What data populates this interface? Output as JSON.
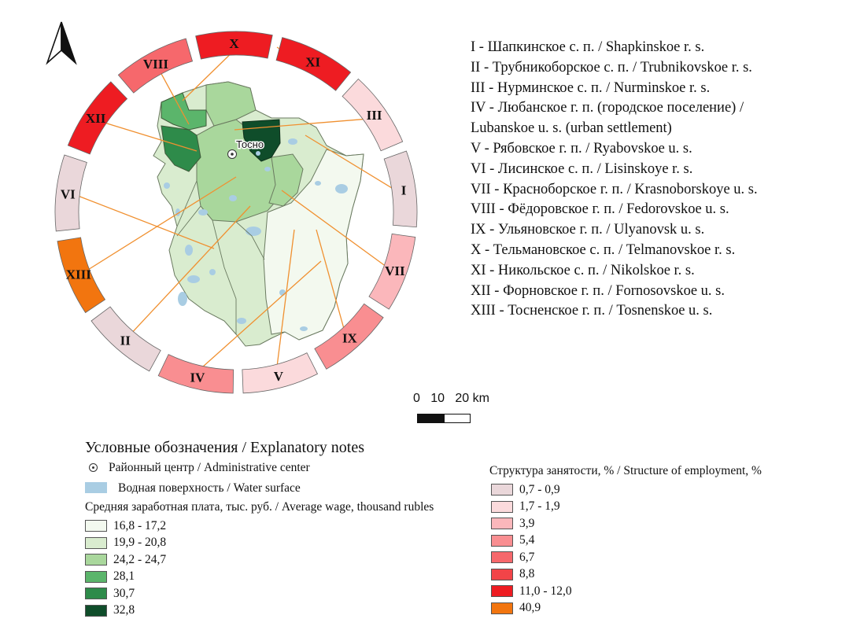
{
  "map": {
    "center_label": "Тосно",
    "north_arrow": "north-arrow-icon",
    "colors": {
      "water": "#a9cde3",
      "leader_line": "#f09030",
      "wage": [
        "#f3f9ef",
        "#d9eccf",
        "#a9d79c",
        "#5bb56b",
        "#2e8b4a",
        "#0f4d2a"
      ],
      "employment": [
        "#ead7da",
        "#fbdadc",
        "#fbb7bb",
        "#f98e91",
        "#f6686c",
        "#f24448",
        "#ee1c22",
        "#f2750f"
      ]
    },
    "ring_segments": [
      {
        "label": "X",
        "color": "#ee1c22"
      },
      {
        "label": "XI",
        "color": "#ee1c22"
      },
      {
        "label": "III",
        "color": "#fbdadc"
      },
      {
        "label": "I",
        "color": "#ead7da"
      },
      {
        "label": "VII",
        "color": "#fbb7bb"
      },
      {
        "label": "IX",
        "color": "#f98e91"
      },
      {
        "label": "V",
        "color": "#fbdadc"
      },
      {
        "label": "IV",
        "color": "#f98e91"
      },
      {
        "label": "II",
        "color": "#ead7da"
      },
      {
        "label": "XIII",
        "color": "#f2750f"
      },
      {
        "label": "VI",
        "color": "#ead7da"
      },
      {
        "label": "XII",
        "color": "#ee1c22"
      },
      {
        "label": "VIII",
        "color": "#f6686c"
      }
    ]
  },
  "settlements": [
    "I - Шапкинское с. п. / Shapkinskoe r. s.",
    "II - Трубникоборское с. п. / Trubnikovskoe r. s.",
    "III - Нурминское с. п. / Nurminskoe r. s.",
    "IV - Любанское г. п. (городское поселение) /",
    "Lubanskoe u. s. (urban settlement)",
    "V - Рябовское г. п. / Ryabovskoe u. s.",
    "VI - Лисинское с. п. / Lisinskoye r. s.",
    "VII - Красноборское г. п. / Krasnoborskoye u. s.",
    "VIII - Фёдоровское г. п. / Fedorovskoe u. s.",
    "IX - Ульяновское г. п. / Ulyanovsk u. s.",
    "X - Тельмановское с. п. / Telmanovskoe r. s.",
    "XI - Никольское с. п. / Nikolskoe r. s.",
    "XII - Форновское г. п. / Fornosovskoe u. s.",
    "XIII - Тосненское г. п. / Tosnenskoe u. s."
  ],
  "scale": {
    "label": "0   10   20 km"
  },
  "notes": {
    "title": "Условные обозначения / Explanatory notes",
    "admin_center": "Районный центр / Administrative center",
    "water_surface": "Водная поверхность / Water surface",
    "wage_title": "Средняя заработная плата, тыс. руб. / Average wage, thousand rubles",
    "wage_classes": [
      {
        "label": "16,8 - 17,2",
        "color": "#f3f9ef"
      },
      {
        "label": "19,9 - 20,8",
        "color": "#d9eccf"
      },
      {
        "label": "24,2 - 24,7",
        "color": "#a9d79c"
      },
      {
        "label": "28,1",
        "color": "#5bb56b"
      },
      {
        "label": "30,7",
        "color": "#2e8b4a"
      },
      {
        "label": "32,8",
        "color": "#0f4d2a"
      }
    ],
    "employment_title": "Структура занятости, % / Structure of employment, %",
    "employment_classes": [
      {
        "label": "0,7 - 0,9",
        "color": "#ead7da"
      },
      {
        "label": "1,7 - 1,9",
        "color": "#fbdadc"
      },
      {
        "label": "3,9",
        "color": "#fbb7bb"
      },
      {
        "label": "5,4",
        "color": "#f98e91"
      },
      {
        "label": "6,7",
        "color": "#f6686c"
      },
      {
        "label": "8,8",
        "color": "#f24448"
      },
      {
        "label": "11,0 - 12,0",
        "color": "#ee1c22"
      },
      {
        "label": "40,9",
        "color": "#f2750f"
      }
    ]
  }
}
